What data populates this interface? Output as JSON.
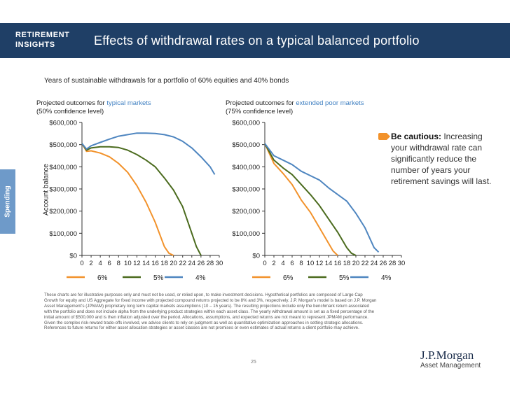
{
  "header": {
    "tag_line1": "RETIREMENT",
    "tag_line2": "INSIGHTS",
    "title": "Effects of withdrawal rates on a typical balanced portfolio"
  },
  "subtitle": "Years of sustainable withdrawals for a portfolio of 60% equities and 40% bonds",
  "side_tab": "Spending",
  "y_axis_label": "Account balance",
  "panels": {
    "left": {
      "head_prefix": "Projected outcomes for ",
      "head_highlight": "typical markets",
      "head_line2": "(50% confidence level)"
    },
    "right": {
      "head_prefix": "Projected outcomes for ",
      "head_highlight": "extended poor markets",
      "head_line2": "(75% confidence level)"
    }
  },
  "caution": {
    "bold": "Be cautious:",
    "text": " Increasing your withdrawal rate can significantly reduce the number of years your retirement savings will last."
  },
  "disclaimer": "These charts are for illustrative purposes only and must not be used, or relied upon, to make investment decisions. Hypothetical portfolios are composed of Large Cap Growth for equity and US Aggregate for fixed income with projected compound returns projected to be 8% and 3%, respectively. J.P. Morgan's model is based on J.P. Morgan Asset Management's (JPMAM) proprietary long term capital markets assumptions (10 – 15 years). The resulting projections include only the benchmark return associated with the portfolio and does not include alpha from the underlying product strategies within each asset class. The yearly withdrawal amount is set as a fixed percentage of the initial amount of $500,000 and is then inflation adjusted over the period. Allocations, assumptions, and expected returns are not meant to represent JPMAM performance. Given the complex risk-reward trade-offs involved, we advise clients to rely on judgment as well as quantitative optimization approaches in setting strategic allocations. References to future returns for either asset allocation strategies or asset classes are not promises or even estimates of actual returns a client portfolio may achieve.",
  "page_number": "25",
  "logo": {
    "name": "J.P.Morgan",
    "sub": "Asset Management"
  },
  "colors": {
    "header": "#1f3f66",
    "six": "#f2922b",
    "five": "#4b6b1e",
    "four": "#4f86c0",
    "accent": "#3e7fc1"
  },
  "chart_data": [
    {
      "type": "line",
      "title": "Projected outcomes for typical markets (50% confidence level)",
      "ylabel": "Account balance",
      "xlim": [
        0,
        30
      ],
      "ylim": [
        0,
        600000
      ],
      "x_ticks": [
        0,
        2,
        4,
        6,
        8,
        10,
        12,
        14,
        16,
        18,
        20,
        22,
        24,
        26,
        28,
        30
      ],
      "y_ticks": [
        "$0",
        "$100,000",
        "$200,000",
        "$300,000",
        "$400,000",
        "$500,000",
        "$600,000"
      ],
      "legend": [
        "6%",
        "5%",
        "4%"
      ],
      "legend_position": "bottom",
      "series": [
        {
          "name": "6%",
          "color": "#f2922b",
          "x": [
            0,
            1,
            2,
            4,
            6,
            8,
            10,
            12,
            14,
            16,
            18,
            19,
            20
          ],
          "y": [
            505000,
            470000,
            472000,
            462000,
            445000,
            415000,
            375000,
            315000,
            240000,
            150000,
            40000,
            10000,
            0
          ]
        },
        {
          "name": "5%",
          "color": "#4b6b1e",
          "x": [
            0,
            1,
            2,
            4,
            6,
            8,
            10,
            12,
            14,
            16,
            18,
            20,
            22,
            24,
            25,
            26
          ],
          "y": [
            505000,
            475000,
            485000,
            490000,
            490000,
            487000,
            475000,
            455000,
            430000,
            400000,
            350000,
            295000,
            220000,
            100000,
            40000,
            0
          ]
        },
        {
          "name": "4%",
          "color": "#4f86c0",
          "x": [
            0,
            1,
            2,
            4,
            6,
            8,
            10,
            12,
            14,
            16,
            18,
            20,
            22,
            24,
            26,
            28,
            29
          ],
          "y": [
            505000,
            480000,
            495000,
            510000,
            525000,
            538000,
            545000,
            552000,
            552000,
            550000,
            545000,
            535000,
            515000,
            485000,
            445000,
            400000,
            365000
          ]
        }
      ]
    },
    {
      "type": "line",
      "title": "Projected outcomes for extended poor markets (75% confidence level)",
      "ylabel": "Account balance",
      "xlim": [
        0,
        30
      ],
      "ylim": [
        0,
        600000
      ],
      "x_ticks": [
        0,
        2,
        4,
        6,
        8,
        10,
        12,
        14,
        16,
        18,
        20,
        22,
        24,
        26,
        28,
        30
      ],
      "y_ticks": [
        "$0",
        "$100,000",
        "$200,000",
        "$300,000",
        "$400,000",
        "$500,000",
        "$600,000"
      ],
      "legend": [
        "6%",
        "5%",
        "4%"
      ],
      "legend_position": "bottom",
      "series": [
        {
          "name": "6%",
          "color": "#f2922b",
          "x": [
            0,
            2,
            4,
            6,
            8,
            10,
            12,
            14,
            15,
            16
          ],
          "y": [
            505000,
            415000,
            370000,
            320000,
            250000,
            195000,
            125000,
            55000,
            20000,
            0
          ]
        },
        {
          "name": "5%",
          "color": "#4b6b1e",
          "x": [
            0,
            2,
            4,
            6,
            8,
            10,
            12,
            14,
            16,
            18,
            19,
            20
          ],
          "y": [
            505000,
            430000,
            395000,
            365000,
            320000,
            275000,
            225000,
            165000,
            105000,
            35000,
            10000,
            0
          ]
        },
        {
          "name": "4%",
          "color": "#4f86c0",
          "x": [
            0,
            2,
            4,
            6,
            8,
            10,
            12,
            14,
            16,
            18,
            20,
            22,
            24,
            25
          ],
          "y": [
            505000,
            450000,
            430000,
            410000,
            380000,
            360000,
            340000,
            305000,
            275000,
            245000,
            190000,
            125000,
            35000,
            15000
          ]
        }
      ]
    }
  ]
}
